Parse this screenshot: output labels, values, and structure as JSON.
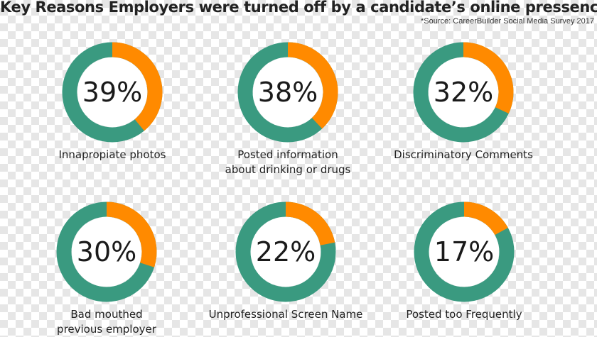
{
  "title": "Key Reasons Employers were turned off by a candidate’s online pressence*:",
  "source": "*Source: CareerBuilder Social Media Survey 2017",
  "colors": {
    "share": "#ff8a00",
    "remainder": "#3a9a80",
    "inner": "#ffffff"
  },
  "chart_data": {
    "type": "pie",
    "unit": "%",
    "items": [
      {
        "label_lines": [
          "Innapropiate photos"
        ],
        "value": 39,
        "value_label": "39%"
      },
      {
        "label_lines": [
          "Posted information",
          "about drinking or drugs"
        ],
        "value": 38,
        "value_label": "38%"
      },
      {
        "label_lines": [
          "Discriminatory Comments"
        ],
        "value": 32,
        "value_label": "32%"
      },
      {
        "label_lines": [
          "Bad mouthed",
          "previous employer"
        ],
        "value": 30,
        "value_label": "30%"
      },
      {
        "label_lines": [
          "Unprofessional Screen Name"
        ],
        "value": 22,
        "value_label": "22%"
      },
      {
        "label_lines": [
          "Posted too Frequently"
        ],
        "value": 17,
        "value_label": "17%"
      }
    ]
  }
}
